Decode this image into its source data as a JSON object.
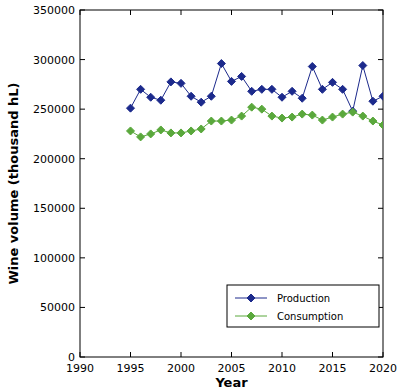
{
  "chart_data": {
    "type": "line",
    "x_label": "Year",
    "y_label": "Wine volume (thousand hL)",
    "x": [
      1995,
      1996,
      1997,
      1998,
      1999,
      2000,
      2001,
      2002,
      2003,
      2004,
      2005,
      2006,
      2007,
      2008,
      2009,
      2010,
      2011,
      2012,
      2013,
      2014,
      2015,
      2016,
      2017,
      2018,
      2019,
      2020
    ],
    "series": [
      {
        "name": "Production",
        "color": "#1c2a8c",
        "marker": "diamond",
        "values": [
          251000,
          270000,
          262000,
          259000,
          277500,
          276000,
          263000,
          257000,
          263000,
          296000,
          278000,
          283000,
          268000,
          270000,
          270000,
          262000,
          268000,
          261000,
          293000,
          270000,
          277000,
          270000,
          248000,
          294000,
          258000,
          263000
        ]
      },
      {
        "name": "Consumption",
        "color": "#5aa83c",
        "marker": "diamond",
        "values": [
          228000,
          222000,
          225000,
          229000,
          226000,
          226000,
          228000,
          230000,
          238000,
          238000,
          239000,
          243000,
          252000,
          250000,
          243000,
          241000,
          242000,
          245000,
          244000,
          239000,
          242000,
          245000,
          247000,
          243000,
          238000,
          234000
        ]
      }
    ],
    "xlim": [
      1990,
      2020
    ],
    "xticks": [
      1990,
      1995,
      2000,
      2005,
      2010,
      2015,
      2020
    ],
    "ylim": [
      0,
      350000
    ],
    "yticks": [
      0,
      50000,
      100000,
      150000,
      200000,
      250000,
      300000,
      350000
    ],
    "legend": "lower right",
    "grid": false
  }
}
